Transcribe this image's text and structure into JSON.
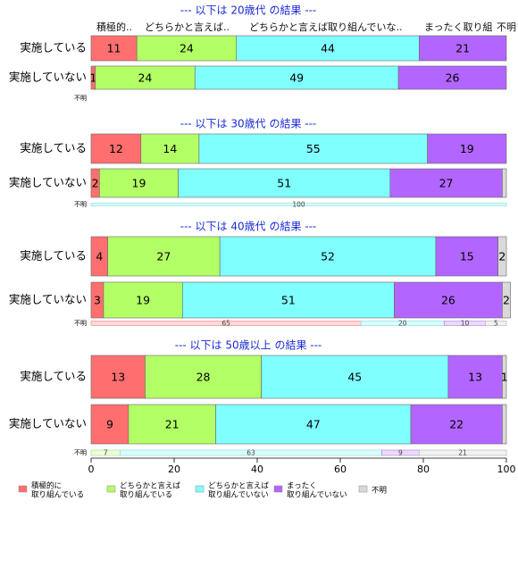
{
  "chart_data": {
    "type": "bar",
    "orientation": "horizontal",
    "stacked": true,
    "xlim": [
      0,
      100
    ],
    "x_ticks": [
      "0",
      "20",
      "40",
      "60",
      "80",
      "100"
    ],
    "column_headers": [
      "積極的..",
      "どちらかと言えば..",
      "どちらかと言えば取り組んでいな..",
      "まったく取り組",
      "不明"
    ],
    "legend": [
      {
        "label": "積極的に\n取り組んでいる",
        "color": "#ff6f6f"
      },
      {
        "label": "どちらかと言えば\n取り組んでいる",
        "color": "#b3ff66"
      },
      {
        "label": "どちらかと言えば\n取り組んでいない",
        "color": "#80ffff"
      },
      {
        "label": "まったく\n取り組んでいない",
        "color": "#b266ff"
      },
      {
        "label": "不明",
        "color": "#d9d9d9"
      }
    ],
    "panels": [
      {
        "title": "--- 以下は 20歳代 の結果 ---",
        "rows": [
          {
            "label": "実施している",
            "values": [
              11,
              24,
              44,
              21,
              0
            ],
            "data_labels": [
              "11",
              "24",
              "44",
              "21",
              ""
            ]
          },
          {
            "label": "実施していない",
            "values": [
              1,
              24,
              49,
              26,
              0
            ],
            "data_labels": [
              "1",
              "24",
              "49",
              "26",
              ""
            ]
          }
        ],
        "unknown": {
          "label": "不明",
          "values": [
            0,
            0,
            0,
            0,
            0
          ],
          "data_labels": [
            "",
            "",
            "",
            "",
            ""
          ]
        }
      },
      {
        "title": "--- 以下は 30歳代 の結果 ---",
        "rows": [
          {
            "label": "実施している",
            "values": [
              12,
              14,
              55,
              19,
              0
            ],
            "data_labels": [
              "12",
              "14",
              "55",
              "19",
              ""
            ]
          },
          {
            "label": "実施していない",
            "values": [
              2,
              19,
              51,
              27,
              1
            ],
            "data_labels": [
              "2",
              "19",
              "51",
              "27",
              ""
            ]
          }
        ],
        "unknown": {
          "label": "不明",
          "values": [
            0,
            0,
            100,
            0,
            0
          ],
          "data_labels": [
            "",
            "",
            "100",
            "",
            ""
          ]
        }
      },
      {
        "title": "--- 以下は 40歳代 の結果 ---",
        "rows": [
          {
            "label": "実施している",
            "values": [
              4,
              27,
              52,
              15,
              2
            ],
            "data_labels": [
              "4",
              "27",
              "52",
              "15",
              "2"
            ]
          },
          {
            "label": "実施していない",
            "values": [
              3,
              19,
              51,
              26,
              2
            ],
            "data_labels": [
              "3",
              "19",
              "51",
              "26",
              "2"
            ]
          }
        ],
        "unknown": {
          "label": "不明",
          "values": [
            65,
            0,
            20,
            10,
            5
          ],
          "data_labels": [
            "65",
            "",
            "20",
            "10",
            "5"
          ]
        }
      },
      {
        "title": "--- 以下は 50歳以上 の結果 ---",
        "rows": [
          {
            "label": "実施している",
            "values": [
              13,
              28,
              45,
              13,
              1
            ],
            "data_labels": [
              "13",
              "28",
              "45",
              "13",
              "1"
            ]
          },
          {
            "label": "実施していない",
            "values": [
              9,
              21,
              47,
              22,
              1
            ],
            "data_labels": [
              "9",
              "21",
              "47",
              "22",
              ""
            ]
          }
        ],
        "unknown": {
          "label": "不明",
          "values": [
            0,
            7,
            63,
            9,
            21
          ],
          "data_labels": [
            "",
            "7",
            "63",
            "9",
            "21"
          ]
        }
      }
    ]
  }
}
